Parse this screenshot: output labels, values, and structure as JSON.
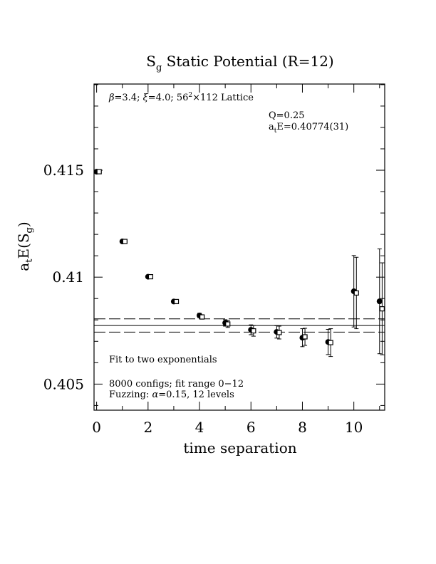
{
  "chart_data": {
    "type": "scatter",
    "title": "S_g Static Potential (R=12)",
    "title_parts": {
      "main": "S",
      "sub": "g",
      "rest": " Static Potential (R=12)"
    },
    "xlabel": "time separation",
    "ylabel_parts": {
      "a": "a",
      "t": "t",
      "mid": "E(S",
      "g": "g",
      "close": ")"
    },
    "xlim": [
      -0.1,
      11.2
    ],
    "ylim": [
      0.40378,
      0.41903
    ],
    "x_ticks": [
      0,
      2,
      4,
      6,
      8,
      10
    ],
    "x_tick_labels": [
      "0",
      "2",
      "4",
      "6",
      "8",
      "10"
    ],
    "y_ticks": [
      0.405,
      0.41,
      0.415
    ],
    "y_tick_labels": [
      "0.405",
      "0.41",
      "0.415"
    ],
    "annotations": {
      "lattice_parts": {
        "beta": "β",
        "t1": "=3.4; ",
        "xi": "ξ",
        "t2": "=4.0; 56",
        "sup": "2",
        "t3": "×112 Lattice"
      },
      "q": "Q=0.25",
      "fit_parts": {
        "a": "a",
        "t": "t",
        "rest": "E=0.40774(31)"
      },
      "fit_method": "Fit to two exponentials",
      "configs": "8000 configs; fit range 0−12",
      "fuzzing_parts": {
        "pre": "Fuzzing: ",
        "alpha": "α",
        "post": "=0.15, 12 levels"
      }
    },
    "fit": {
      "value": 0.40774,
      "error": 0.00031
    },
    "series": [
      {
        "marker": "filled-circle",
        "points": [
          {
            "x": 0,
            "y": 0.41493,
            "err": 3e-05
          },
          {
            "x": 1,
            "y": 0.41167,
            "err": 4e-05
          },
          {
            "x": 2,
            "y": 0.41002,
            "err": 5e-05
          },
          {
            "x": 3,
            "y": 0.40886,
            "err": 6e-05
          },
          {
            "x": 4,
            "y": 0.40821,
            "err": 0.0001
          },
          {
            "x": 5,
            "y": 0.40786,
            "err": 0.00015
          },
          {
            "x": 6,
            "y": 0.40754,
            "err": 0.00023
          },
          {
            "x": 7,
            "y": 0.40744,
            "err": 0.00029
          },
          {
            "x": 8,
            "y": 0.40717,
            "err": 0.00042
          },
          {
            "x": 9,
            "y": 0.40697,
            "err": 0.00059
          },
          {
            "x": 10,
            "y": 0.40934,
            "err": 0.00167
          },
          {
            "x": 11,
            "y": 0.40887,
            "err": 0.00245
          }
        ]
      },
      {
        "marker": "open-square",
        "points": [
          {
            "x": 0.1,
            "y": 0.41493,
            "err": 3e-05
          },
          {
            "x": 1.1,
            "y": 0.41167,
            "err": 4e-05
          },
          {
            "x": 2.1,
            "y": 0.41002,
            "err": 5e-05
          },
          {
            "x": 3.1,
            "y": 0.40886,
            "err": 6e-05
          },
          {
            "x": 4.1,
            "y": 0.40814,
            "err": 0.0001
          },
          {
            "x": 5.1,
            "y": 0.40781,
            "err": 0.00016
          },
          {
            "x": 6.1,
            "y": 0.40749,
            "err": 0.00025
          },
          {
            "x": 7.1,
            "y": 0.40741,
            "err": 0.0003
          },
          {
            "x": 8.1,
            "y": 0.40721,
            "err": 0.0004
          },
          {
            "x": 9.1,
            "y": 0.40694,
            "err": 0.00065
          },
          {
            "x": 10.1,
            "y": 0.40926,
            "err": 0.00167
          },
          {
            "x": 11.1,
            "y": 0.40852,
            "err": 0.00215
          }
        ]
      }
    ],
    "grid": false
  }
}
